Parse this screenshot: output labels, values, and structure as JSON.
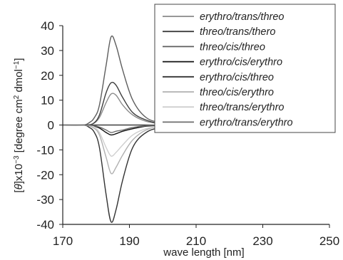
{
  "chart_data": {
    "type": "line",
    "title": "",
    "xlabel": "wave length [nm]",
    "ylabel_parts": [
      "[",
      "θ",
      "]x10",
      "−3",
      " [degree cm",
      "2",
      " dmol",
      "−1",
      "]"
    ],
    "xlim": [
      170,
      250
    ],
    "ylim": [
      -40,
      40
    ],
    "xticks": [
      "170",
      "190",
      "210",
      "230",
      "250"
    ],
    "yticks": [
      "40",
      "30",
      "20",
      "10",
      "0",
      "-10",
      "-20",
      "-30",
      "-40"
    ],
    "legend_position": "top-right",
    "grid": false,
    "series": [
      {
        "name": "erythro/trans/threo",
        "color": "#8a8a8a",
        "x": [
          170,
          176,
          179,
          181,
          183,
          184.5,
          186,
          188,
          191,
          195,
          200,
          210,
          250
        ],
        "y": [
          0,
          0,
          0.5,
          3,
          9,
          12.5,
          12,
          8,
          4,
          1.5,
          0.5,
          0,
          0
        ]
      },
      {
        "name": "threo/trans/thero",
        "color": "#3e3e3e",
        "x": [
          170,
          176,
          179,
          181,
          183,
          184.5,
          186,
          188,
          191,
          195,
          200,
          210,
          250
        ],
        "y": [
          0,
          0,
          0.5,
          4,
          13,
          17,
          16,
          11,
          5,
          2,
          0.5,
          0,
          0
        ]
      },
      {
        "name": "threo/cis/threo",
        "color": "#5e5e5e",
        "x": [
          170,
          176,
          178,
          179.5,
          181,
          183,
          184.5,
          186,
          188,
          191,
          195,
          200,
          210,
          250
        ],
        "y": [
          0,
          0,
          1,
          3,
          8,
          24,
          35.5,
          32,
          22,
          10,
          3,
          1,
          0,
          0
        ]
      },
      {
        "name": "erythro/cis/erythro",
        "color": "#111111",
        "x": [
          170,
          176,
          179,
          181,
          183,
          184.5,
          186,
          188,
          191,
          195,
          200,
          210,
          250
        ],
        "y": [
          0,
          0,
          -0.3,
          -1.2,
          -3,
          -4,
          -3.5,
          -2.5,
          -1.5,
          -0.5,
          -0.2,
          0,
          0
        ]
      },
      {
        "name": "erythro/cis/threo",
        "color": "#333333",
        "x": [
          170,
          176,
          178,
          179.5,
          181,
          183,
          184.5,
          186,
          188,
          191,
          195,
          200,
          210,
          250
        ],
        "y": [
          0,
          0,
          -1,
          -3,
          -9,
          -28,
          -39,
          -34,
          -22,
          -9,
          -3,
          -1,
          0,
          0
        ]
      },
      {
        "name": "threo/cis/erythro",
        "color": "#b0b0b0",
        "x": [
          170,
          176,
          179,
          181,
          183,
          184.5,
          186,
          188,
          191,
          195,
          200,
          210,
          250
        ],
        "y": [
          0,
          0,
          -1,
          -4,
          -13,
          -19.5,
          -17,
          -12,
          -6,
          -2,
          -0.5,
          0,
          0
        ]
      },
      {
        "name": "threo/trans/erythro",
        "color": "#cfcfcf",
        "x": [
          170,
          176,
          179,
          181,
          183,
          184.5,
          186,
          188,
          191,
          195,
          200,
          210,
          250
        ],
        "y": [
          0,
          0,
          -0.5,
          -3,
          -9,
          -12.5,
          -11,
          -8,
          -4,
          -1.5,
          -0.5,
          0,
          0
        ]
      },
      {
        "name": "erythro/trans/erythro",
        "color": "#6e6e6e",
        "x": [
          170,
          176,
          179,
          181,
          183,
          184.5,
          186,
          188,
          191,
          195,
          200,
          210,
          250
        ],
        "y": [
          0,
          0,
          -0.2,
          -0.8,
          -2,
          -3,
          -2.5,
          -2,
          -1,
          -0.3,
          0,
          0,
          0
        ]
      }
    ]
  }
}
